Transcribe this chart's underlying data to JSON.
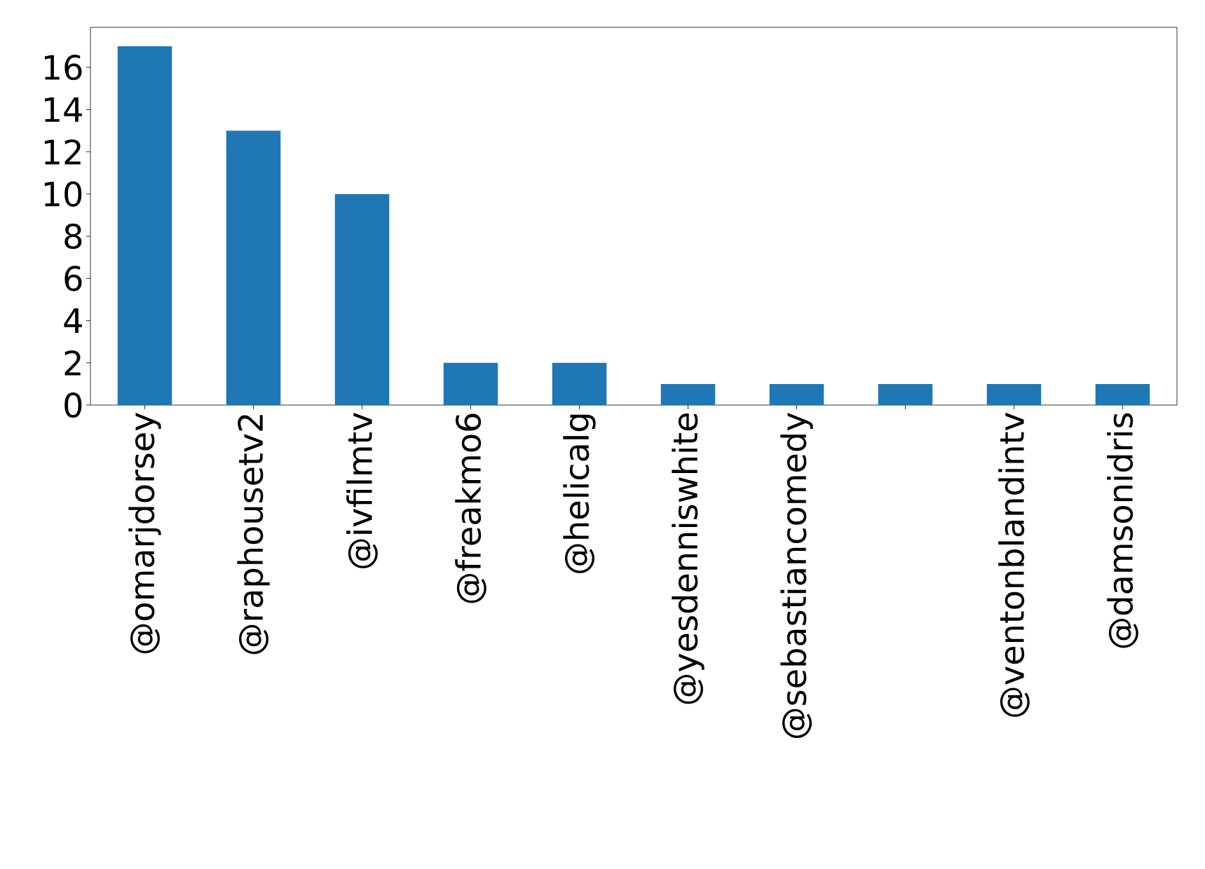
{
  "chart_data": {
    "type": "bar",
    "categories": [
      "@omarjdorsey",
      "@raphousetv2",
      "@ivfilmtv",
      "@freakmo6",
      "@helicalg",
      "@yesdenniswhite",
      "@sebastiancomedy",
      null,
      "@ventonblandintv",
      "@damsonidris"
    ],
    "values": [
      17,
      13,
      10,
      2,
      2,
      1,
      1,
      1,
      1,
      1
    ],
    "color": "#1f77b4",
    "ylim": [
      0,
      17.9
    ],
    "yticks": [
      0,
      2,
      4,
      6,
      8,
      10,
      12,
      14,
      16
    ],
    "grid": false
  }
}
